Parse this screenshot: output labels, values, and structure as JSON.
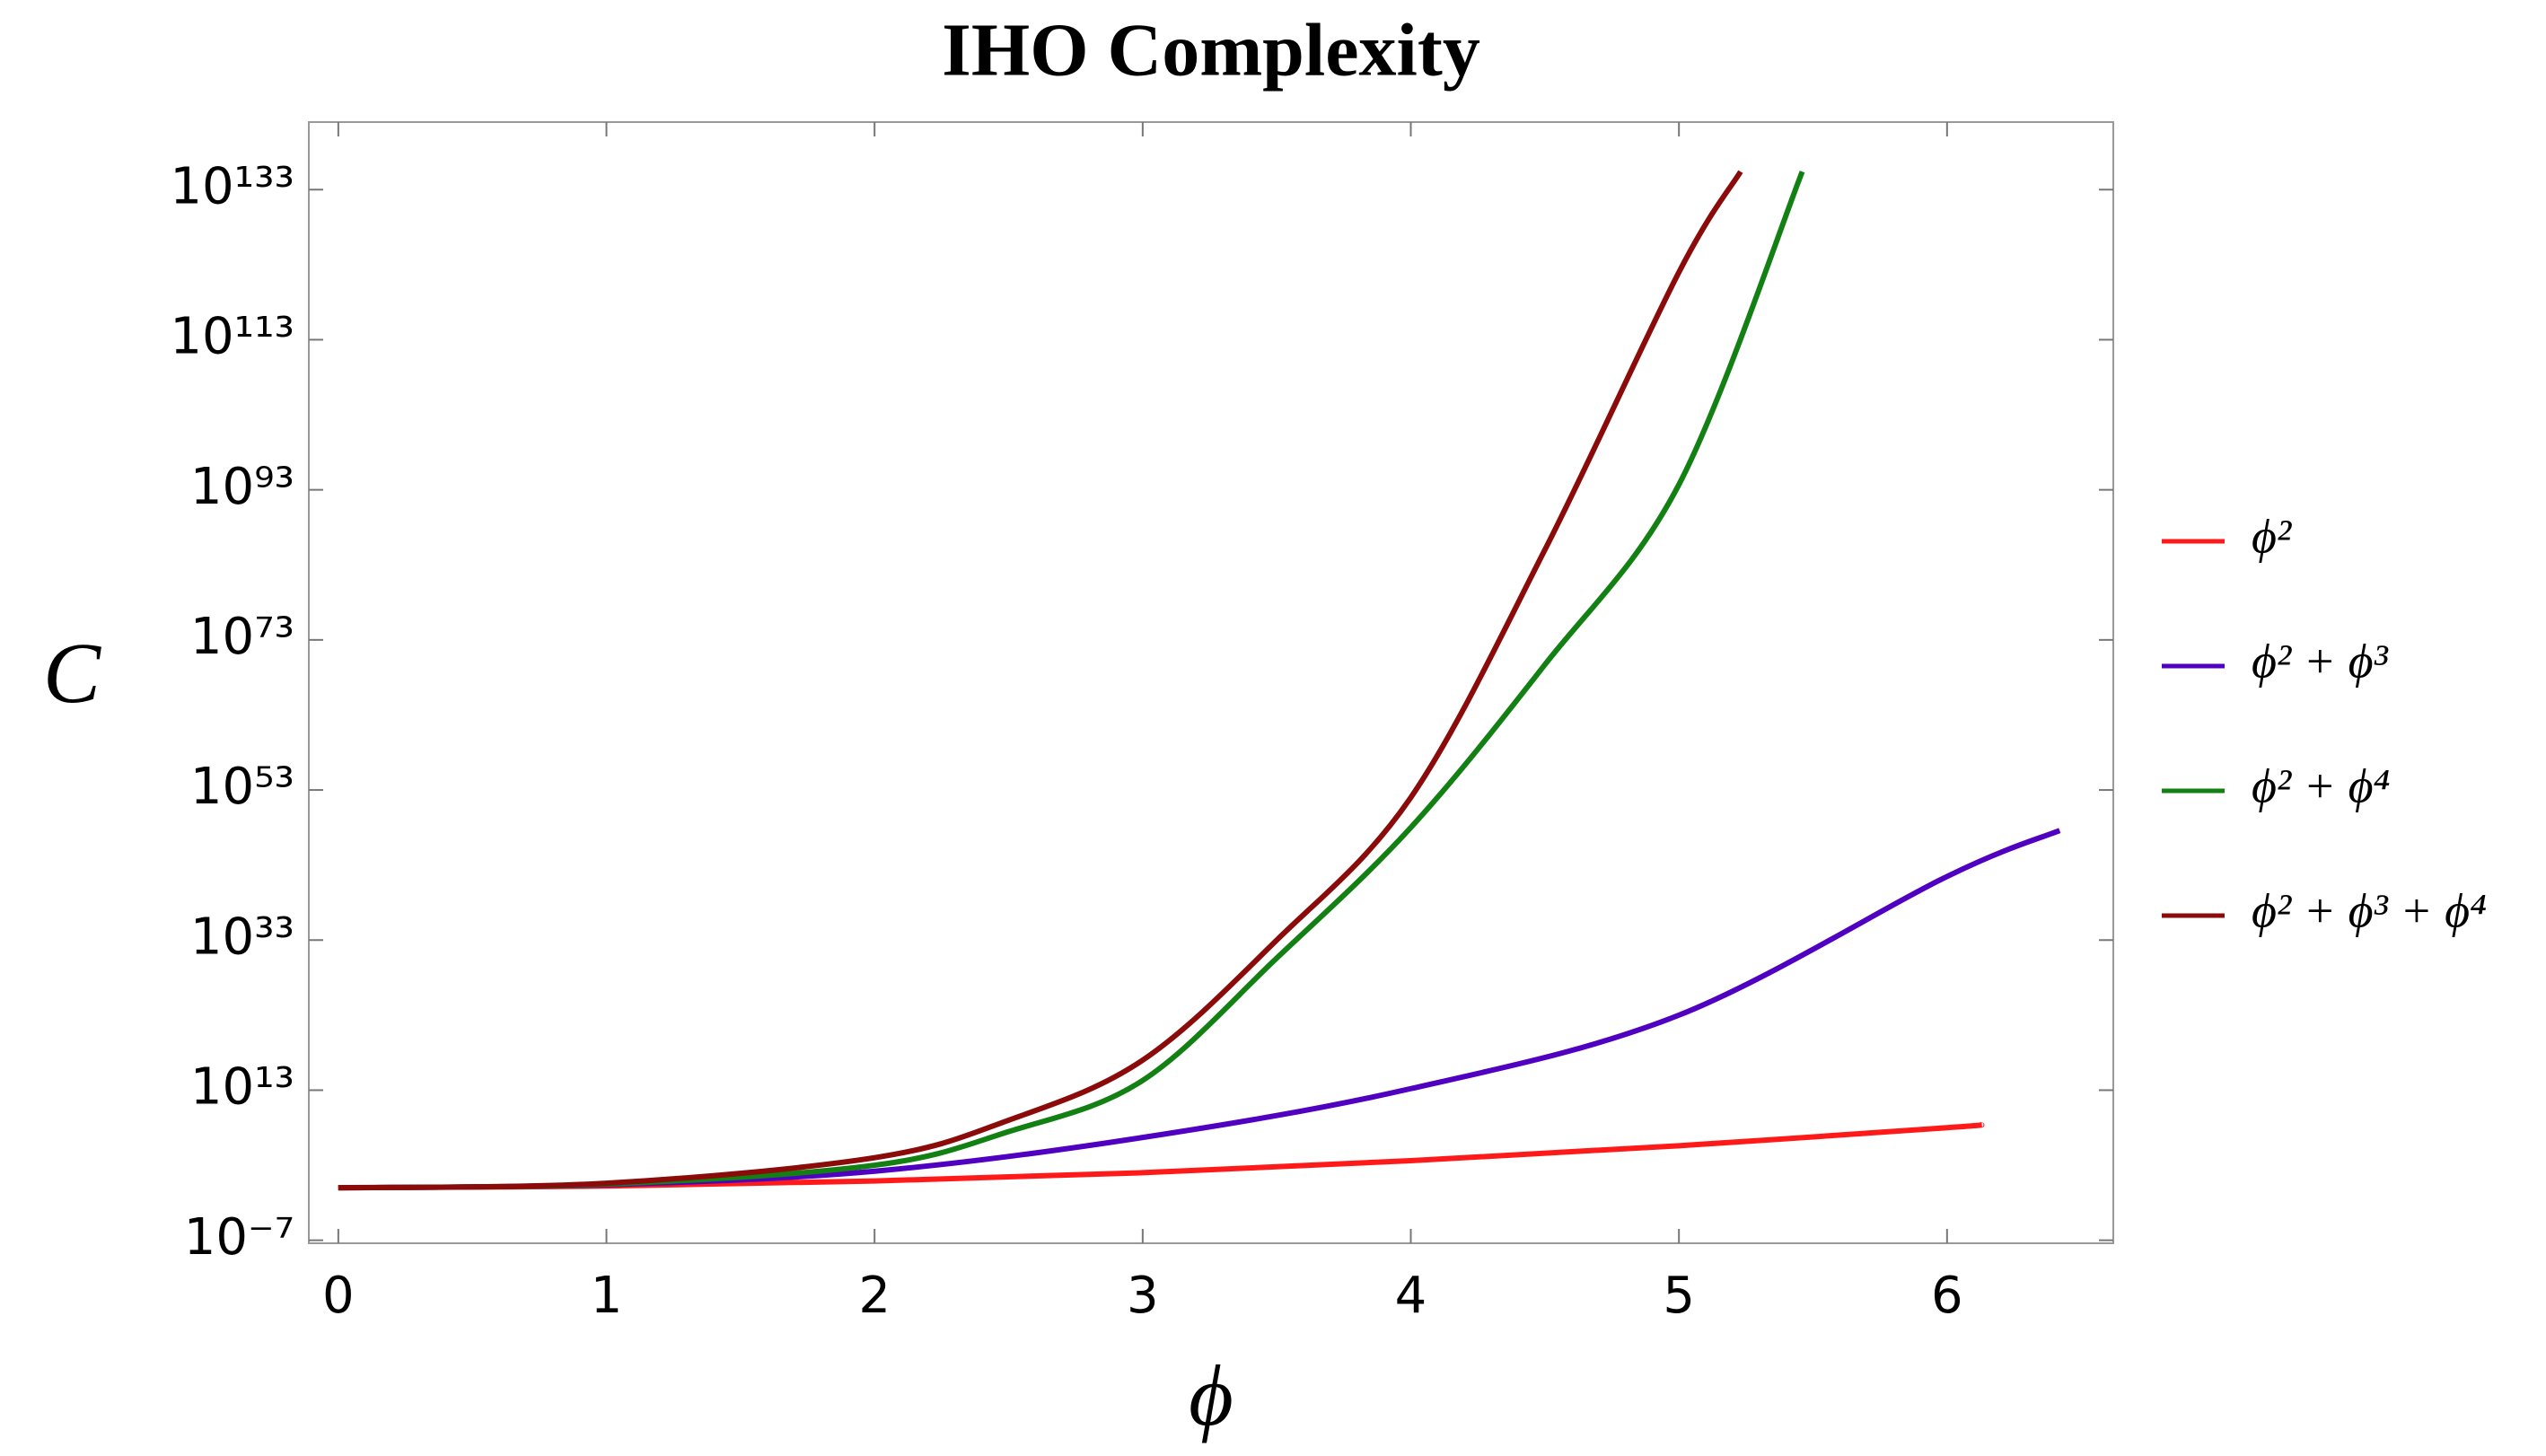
{
  "chart_data": {
    "type": "line",
    "title": "IHO Complexity",
    "x_label": "ϕ",
    "y_label": "C",
    "log_y": true,
    "xlim": [
      -0.11,
      6.62
    ],
    "ylim": [
      4e-08,
      1e+142
    ],
    "xticks": [
      0,
      1,
      2,
      3,
      4,
      5,
      6
    ],
    "yticks": [
      {
        "value": 1e-07,
        "label": "10⁻⁷"
      },
      {
        "value": 10000000000000.0,
        "label": "10¹³"
      },
      {
        "value": 1e+33,
        "label": "10³³"
      },
      {
        "value": 1e+53,
        "label": "10⁵³"
      },
      {
        "value": 1e+73,
        "label": "10⁷³"
      },
      {
        "value": 1e+93,
        "label": "10⁹³"
      },
      {
        "value": 1e+113,
        "label": "10¹¹³"
      },
      {
        "value": 1e+133,
        "label": "10¹³³"
      }
    ],
    "series": [
      {
        "name": "ϕ²",
        "color": "#ff1a1a",
        "x": [
          0,
          1,
          2,
          3,
          4,
          5,
          6,
          6.13
        ],
        "values": [
          1,
          1.7,
          8,
          100,
          4000,
          400000,
          100000000,
          250000000
        ]
      },
      {
        "name": "ϕ² + ϕ³",
        "color": "#5000c0",
        "x": [
          0,
          1,
          2,
          3,
          4,
          5,
          6,
          6.42
        ],
        "values": [
          1,
          2.5,
          160,
          5000000,
          16000000000000.0,
          1e+23,
          3e+41,
          4e+47
        ]
      },
      {
        "name": "ϕ² + ϕ⁴",
        "color": "#128012",
        "x": [
          0,
          1,
          2,
          2.5,
          3,
          3.5,
          4,
          4.5,
          5,
          5.46
        ],
        "values": [
          1,
          3,
          1000,
          30000000,
          200000000000000.0,
          4e+30,
          1e+48,
          5e+69,
          5e+93,
          2.5e+135
        ]
      },
      {
        "name": "ϕ² + ϕ³ + ϕ⁴",
        "color": "#8b0a0a",
        "x": [
          0,
          1,
          2,
          2.5,
          3,
          3.5,
          4,
          4.5,
          5,
          5.23
        ],
        "values": [
          1,
          4,
          10000,
          1000000000,
          1e+17,
          1e+33,
          1e+52,
          1e+85,
          1e+122,
          2.5e+135
        ]
      }
    ],
    "legend": "right"
  }
}
